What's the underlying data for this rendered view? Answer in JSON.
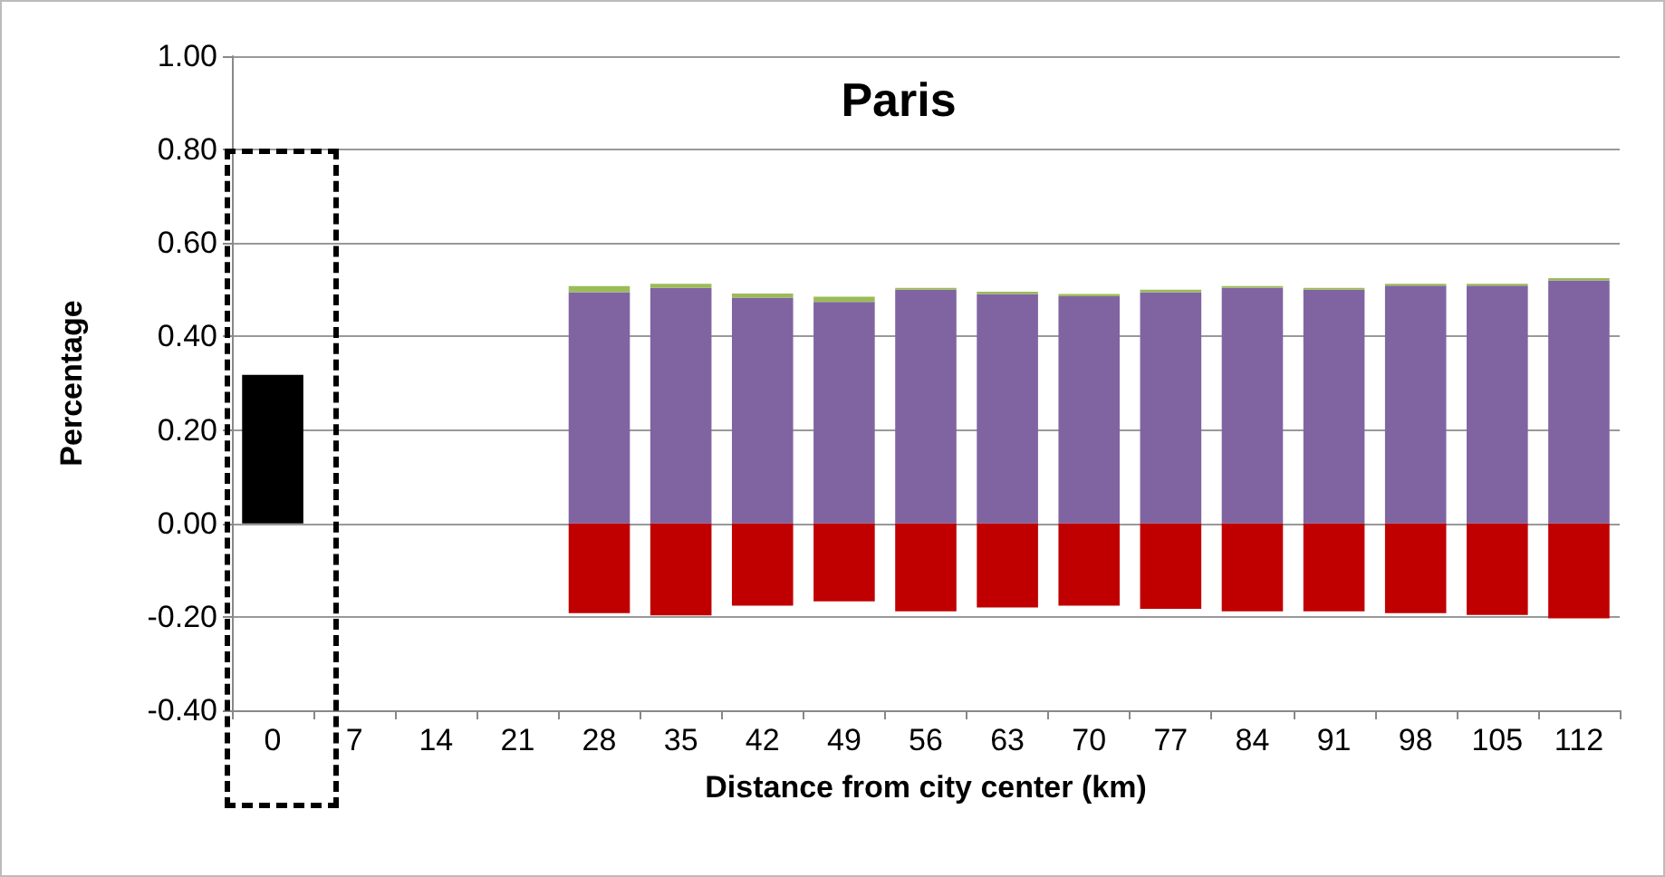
{
  "chart_data": {
    "type": "bar",
    "title": "Paris",
    "xlabel": "Distance from city center (km)",
    "ylabel": "Percentage",
    "categories": [
      "0",
      "7",
      "14",
      "21",
      "28",
      "35",
      "42",
      "49",
      "56",
      "63",
      "70",
      "77",
      "84",
      "91",
      "98",
      "105",
      "112"
    ],
    "stacked": true,
    "series": [
      {
        "color": "#000000",
        "values": [
          0.318,
          null,
          null,
          null,
          null,
          null,
          null,
          null,
          null,
          null,
          null,
          null,
          null,
          null,
          null,
          null,
          null
        ]
      },
      {
        "color": "#8064a2",
        "values": [
          null,
          null,
          null,
          null,
          0.495,
          0.504,
          0.483,
          0.474,
          0.5,
          0.491,
          0.486,
          0.495,
          0.504,
          0.5,
          0.509,
          0.509,
          0.52
        ]
      },
      {
        "color": "#9bbb59",
        "values": [
          null,
          null,
          null,
          null,
          0.013,
          0.009,
          0.009,
          0.011,
          0.004,
          0.005,
          0.005,
          0.005,
          0.004,
          0.004,
          0.004,
          0.004,
          0.005
        ]
      },
      {
        "color": "#c00000",
        "values": [
          null,
          null,
          null,
          null,
          -0.192,
          -0.197,
          -0.176,
          -0.167,
          -0.188,
          -0.18,
          -0.176,
          -0.183,
          -0.188,
          -0.188,
          -0.192,
          -0.196,
          -0.203
        ]
      }
    ],
    "ylim": [
      -0.4,
      1.0
    ],
    "yticks": [
      {
        "value": -0.4,
        "label": "-0.40"
      },
      {
        "value": -0.2,
        "label": "-0.20"
      },
      {
        "value": 0,
        "label": "0.00"
      },
      {
        "value": 0.2,
        "label": "0.20"
      },
      {
        "value": 0.4,
        "label": "0.40"
      },
      {
        "value": 0.6,
        "label": "0.60"
      },
      {
        "value": 0.8,
        "label": "0.80"
      },
      {
        "value": 1.0,
        "label": "1.00"
      }
    ],
    "grid": "y"
  }
}
